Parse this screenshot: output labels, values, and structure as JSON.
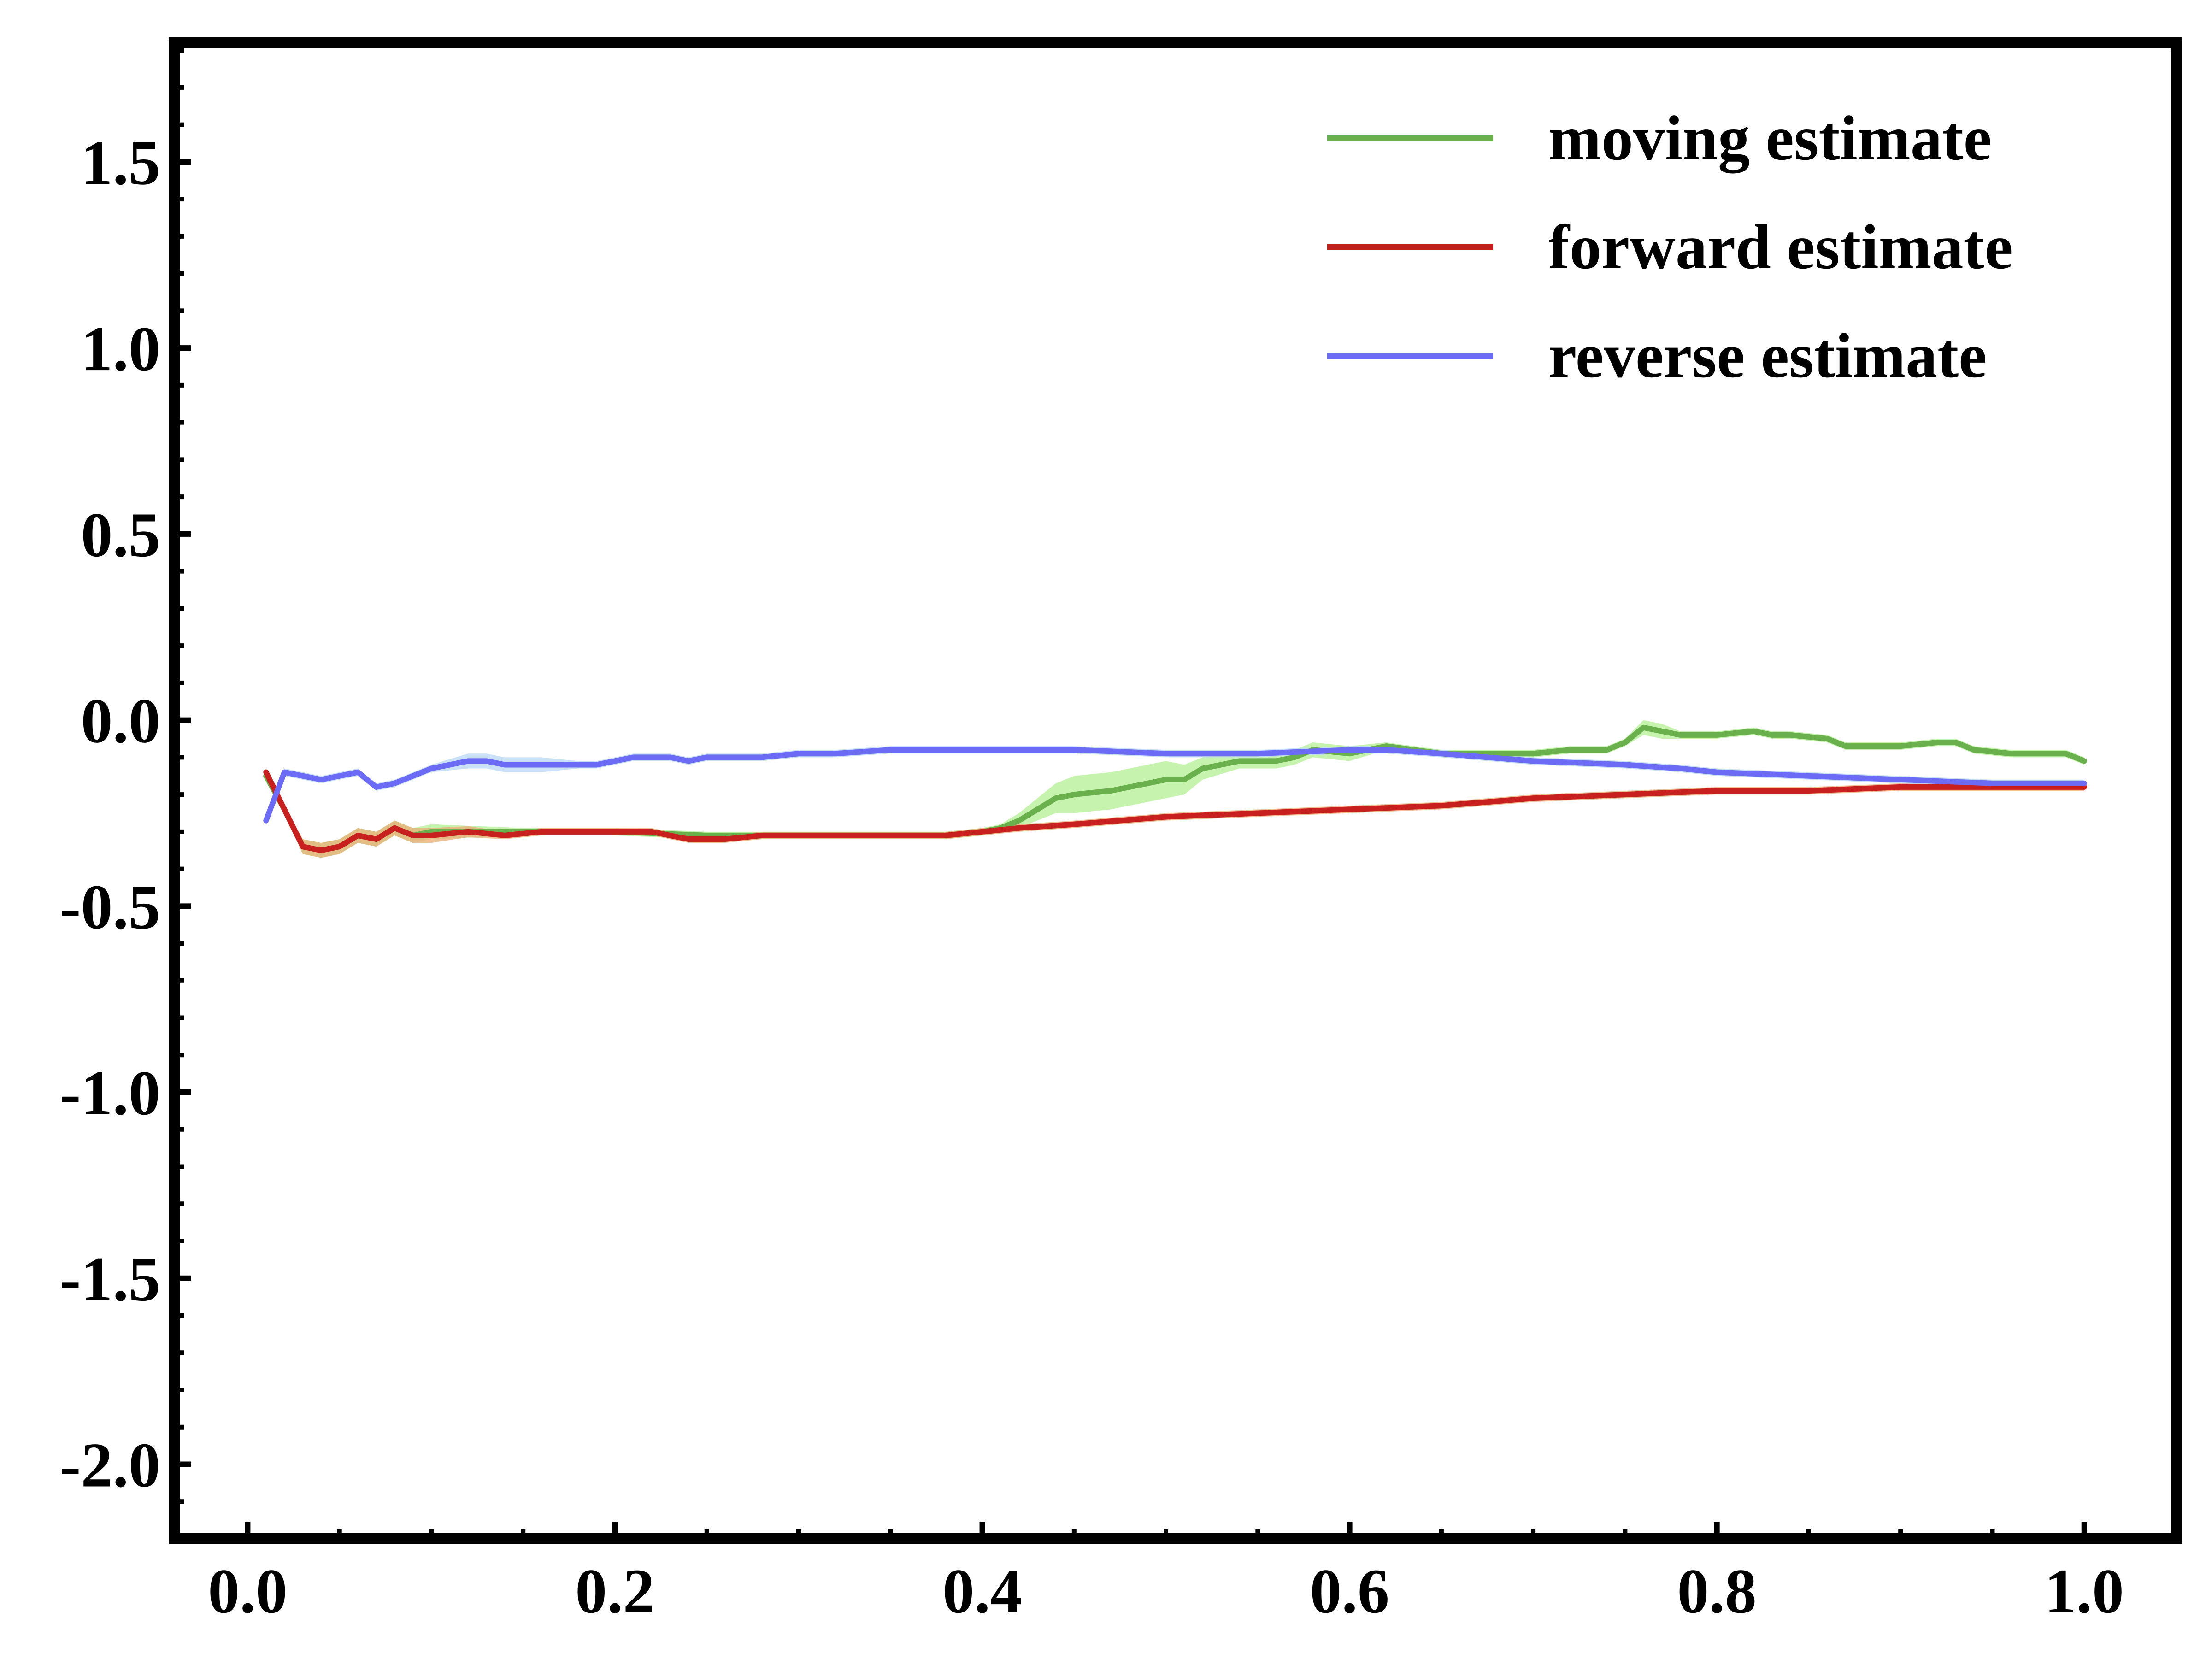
{
  "chart_data": {
    "type": "line",
    "title": "",
    "xlabel": "",
    "ylabel": "",
    "xlim": [
      -0.04,
      1.05
    ],
    "ylim": [
      -2.2,
      1.82
    ],
    "x_ticks": [
      0.0,
      0.2,
      0.4,
      0.6,
      0.8,
      1.0
    ],
    "x_tick_labels": [
      "0.0",
      "0.2",
      "0.4",
      "0.6",
      "0.8",
      "1.0"
    ],
    "y_ticks": [
      1.5,
      1.0,
      0.5,
      0.0,
      -0.5,
      -1.0,
      -1.5,
      -2.0
    ],
    "y_tick_labels": [
      "1.5",
      "1.0",
      "0.5",
      "0.0",
      "-0.5",
      "-1.0",
      "-1.5",
      "-2.0"
    ],
    "grid": false,
    "legend_position": "top-right",
    "series": [
      {
        "name": "moving estimate",
        "color": "#6ab04c",
        "band_color": "#b8f09a",
        "x": [
          0.01,
          0.02,
          0.03,
          0.04,
          0.05,
          0.06,
          0.07,
          0.08,
          0.09,
          0.1,
          0.15,
          0.2,
          0.25,
          0.3,
          0.35,
          0.38,
          0.4,
          0.41,
          0.42,
          0.43,
          0.44,
          0.45,
          0.47,
          0.49,
          0.5,
          0.51,
          0.52,
          0.54,
          0.56,
          0.57,
          0.58,
          0.6,
          0.62,
          0.65,
          0.7,
          0.72,
          0.74,
          0.75,
          0.76,
          0.77,
          0.78,
          0.8,
          0.82,
          0.83,
          0.84,
          0.86,
          0.87,
          0.88,
          0.9,
          0.92,
          0.93,
          0.94,
          0.96,
          0.98,
          0.99,
          1.0
        ],
        "y": [
          -0.15,
          -0.24,
          -0.34,
          -0.35,
          -0.34,
          -0.31,
          -0.32,
          -0.29,
          -0.31,
          -0.3,
          -0.3,
          -0.3,
          -0.31,
          -0.31,
          -0.31,
          -0.31,
          -0.3,
          -0.29,
          -0.27,
          -0.24,
          -0.21,
          -0.2,
          -0.19,
          -0.17,
          -0.16,
          -0.16,
          -0.13,
          -0.11,
          -0.11,
          -0.1,
          -0.08,
          -0.09,
          -0.07,
          -0.09,
          -0.09,
          -0.08,
          -0.08,
          -0.06,
          -0.02,
          -0.03,
          -0.04,
          -0.04,
          -0.03,
          -0.04,
          -0.04,
          -0.05,
          -0.07,
          -0.07,
          -0.07,
          -0.06,
          -0.06,
          -0.08,
          -0.09,
          -0.09,
          -0.09,
          -0.11
        ],
        "band": [
          0.01,
          0.01,
          0.02,
          0.02,
          0.02,
          0.02,
          0.02,
          0.02,
          0.02,
          0.02,
          0.01,
          0.01,
          0.01,
          0.01,
          0.01,
          0.01,
          0.01,
          0.01,
          0.02,
          0.03,
          0.04,
          0.05,
          0.05,
          0.05,
          0.05,
          0.04,
          0.03,
          0.02,
          0.02,
          0.02,
          0.02,
          0.02,
          0.01,
          0.01,
          0.01,
          0.01,
          0.01,
          0.01,
          0.02,
          0.02,
          0.01,
          0.01,
          0.01,
          0.01,
          0.01,
          0.01,
          0.01,
          0.01,
          0.01,
          0.01,
          0.01,
          0.01,
          0.01,
          0.01,
          0.01,
          0.01
        ]
      },
      {
        "name": "forward estimate",
        "color": "#c8201e",
        "band_color": "#e8b07a",
        "x": [
          0.01,
          0.02,
          0.03,
          0.04,
          0.05,
          0.06,
          0.07,
          0.08,
          0.09,
          0.1,
          0.12,
          0.14,
          0.16,
          0.18,
          0.2,
          0.22,
          0.24,
          0.26,
          0.28,
          0.3,
          0.32,
          0.35,
          0.38,
          0.4,
          0.42,
          0.45,
          0.5,
          0.55,
          0.6,
          0.65,
          0.7,
          0.75,
          0.8,
          0.85,
          0.9,
          0.95,
          1.0
        ],
        "y": [
          -0.14,
          -0.24,
          -0.34,
          -0.35,
          -0.34,
          -0.31,
          -0.32,
          -0.29,
          -0.31,
          -0.31,
          -0.3,
          -0.31,
          -0.3,
          -0.3,
          -0.3,
          -0.3,
          -0.32,
          -0.32,
          -0.31,
          -0.31,
          -0.31,
          -0.31,
          -0.31,
          -0.3,
          -0.29,
          -0.28,
          -0.26,
          -0.25,
          -0.24,
          -0.23,
          -0.21,
          -0.2,
          -0.19,
          -0.19,
          -0.18,
          -0.18,
          -0.18
        ],
        "band": [
          0.01,
          0.01,
          0.02,
          0.02,
          0.02,
          0.02,
          0.02,
          0.02,
          0.02,
          0.02,
          0.015,
          0.01,
          0.01,
          0.01,
          0.01,
          0.01,
          0.01,
          0.01,
          0.01,
          0.01,
          0.01,
          0.01,
          0.01,
          0.01,
          0.01,
          0.01,
          0.01,
          0.01,
          0.01,
          0.01,
          0.01,
          0.01,
          0.01,
          0.01,
          0.01,
          0.01,
          0.01
        ]
      },
      {
        "name": "reverse estimate",
        "color": "#6b6bf5",
        "band_color": "#bcd8f5",
        "x": [
          0.01,
          0.02,
          0.03,
          0.04,
          0.05,
          0.06,
          0.07,
          0.08,
          0.09,
          0.1,
          0.11,
          0.12,
          0.13,
          0.14,
          0.15,
          0.16,
          0.17,
          0.18,
          0.19,
          0.2,
          0.21,
          0.22,
          0.23,
          0.24,
          0.25,
          0.26,
          0.28,
          0.3,
          0.32,
          0.35,
          0.4,
          0.45,
          0.5,
          0.55,
          0.6,
          0.62,
          0.65,
          0.7,
          0.75,
          0.78,
          0.8,
          0.85,
          0.9,
          0.95,
          1.0
        ],
        "y": [
          -0.27,
          -0.14,
          -0.15,
          -0.16,
          -0.15,
          -0.14,
          -0.18,
          -0.17,
          -0.15,
          -0.13,
          -0.12,
          -0.11,
          -0.11,
          -0.12,
          -0.12,
          -0.12,
          -0.12,
          -0.12,
          -0.12,
          -0.11,
          -0.1,
          -0.1,
          -0.1,
          -0.11,
          -0.1,
          -0.1,
          -0.1,
          -0.09,
          -0.09,
          -0.08,
          -0.08,
          -0.08,
          -0.09,
          -0.09,
          -0.08,
          -0.08,
          -0.09,
          -0.11,
          -0.12,
          -0.13,
          -0.14,
          -0.15,
          -0.16,
          -0.17,
          -0.17
        ],
        "band": [
          0.01,
          0.01,
          0.01,
          0.01,
          0.01,
          0.01,
          0.01,
          0.01,
          0.01,
          0.01,
          0.015,
          0.02,
          0.02,
          0.02,
          0.02,
          0.02,
          0.015,
          0.01,
          0.01,
          0.01,
          0.01,
          0.01,
          0.01,
          0.01,
          0.01,
          0.01,
          0.01,
          0.01,
          0.01,
          0.01,
          0.01,
          0.01,
          0.01,
          0.01,
          0.01,
          0.01,
          0.01,
          0.01,
          0.01,
          0.01,
          0.01,
          0.01,
          0.01,
          0.01,
          0.01
        ]
      }
    ]
  }
}
